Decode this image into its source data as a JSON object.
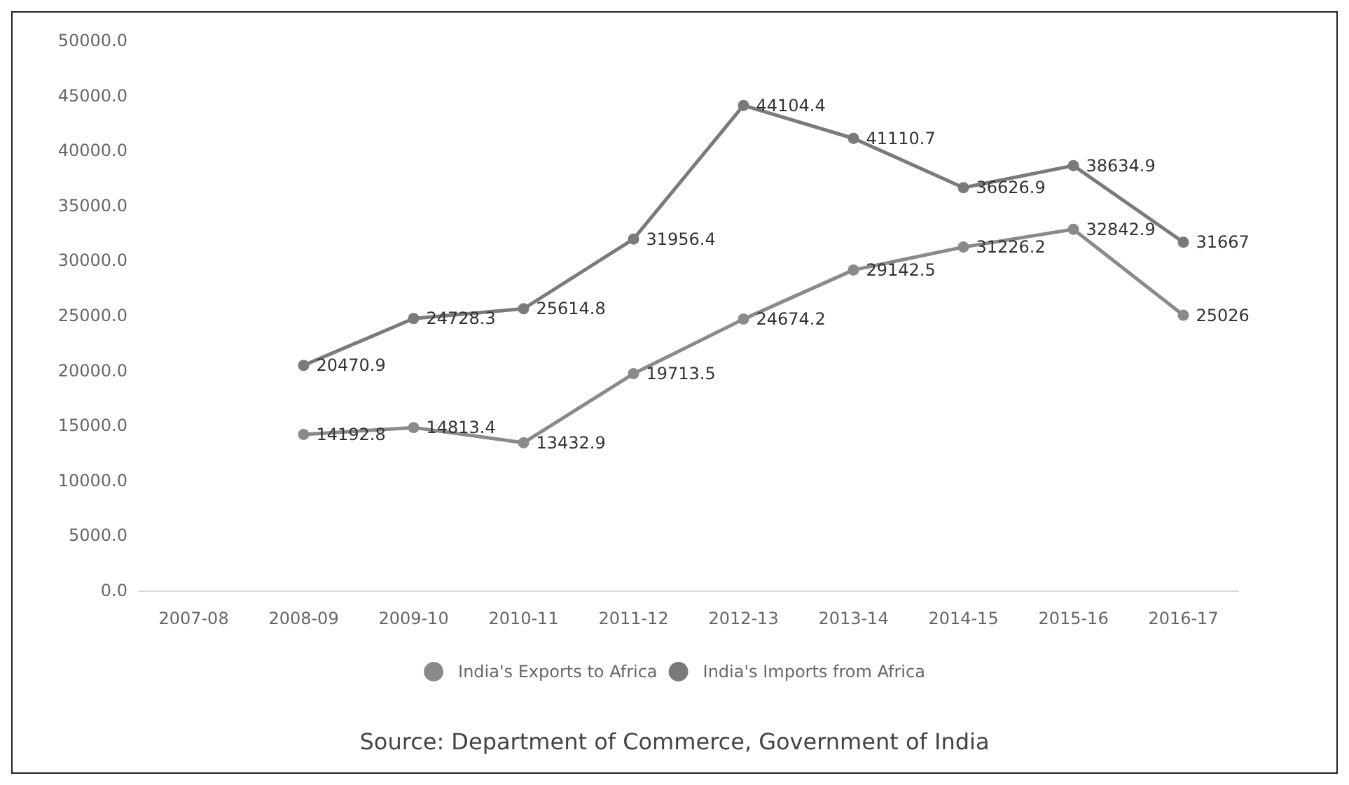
{
  "chart_data": {
    "type": "line",
    "categories": [
      "2007-08",
      "2008-09",
      "2009-10",
      "2010-11",
      "2011-12",
      "2012-13",
      "2013-14",
      "2014-15",
      "2015-16",
      "2016-17"
    ],
    "series": [
      {
        "name": "India's Exports to Africa",
        "color": "#8a8a8a",
        "values": [
          null,
          14192.8,
          14813.4,
          13432.9,
          19713.5,
          24674.2,
          29142.5,
          31226.2,
          32842.9,
          25026
        ]
      },
      {
        "name": "India's Imports from Africa",
        "color": "#7a7a7a",
        "values": [
          null,
          20470.9,
          24728.3,
          25614.8,
          31956.4,
          44104.4,
          41110.7,
          36626.9,
          38634.9,
          31667
        ]
      }
    ],
    "ylim": [
      0,
      50000
    ],
    "yticks": [
      {
        "value": 0,
        "label": "0.0"
      },
      {
        "value": 5000,
        "label": "5000.0"
      },
      {
        "value": 10000,
        "label": "10000.0"
      },
      {
        "value": 15000,
        "label": "15000.0"
      },
      {
        "value": 20000,
        "label": "20000.0"
      },
      {
        "value": 25000,
        "label": "25000.0"
      },
      {
        "value": 30000,
        "label": "30000.0"
      },
      {
        "value": 35000,
        "label": "35000.0"
      },
      {
        "value": 40000,
        "label": "40000.0"
      },
      {
        "value": 45000,
        "label": "45000.0"
      },
      {
        "value": 50000,
        "label": "50000.0"
      }
    ],
    "data_labels": true,
    "marker": "circle",
    "grid": false,
    "legend": "bottom",
    "annotations": [
      "Source: Department of Commerce, Government of India"
    ]
  }
}
